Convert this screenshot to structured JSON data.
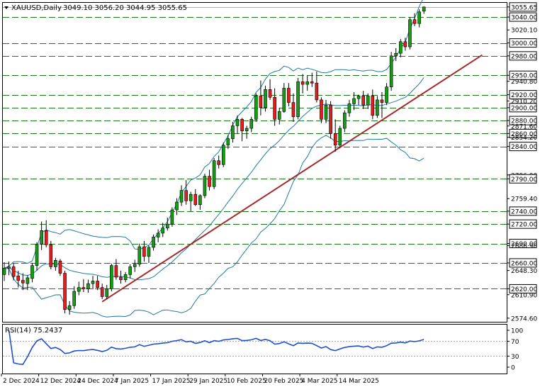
{
  "header": {
    "symbol_label": "XAUUSD,Daily",
    "ohlc": "3049.10 3056.20 3044.95 3055.65"
  },
  "rsi": {
    "label": "RSI(14) 75.2437",
    "value": 75.2437,
    "levels": [
      "100",
      "70",
      "30",
      "0"
    ]
  },
  "colors": {
    "bull": "#10a010",
    "bear": "#e02020",
    "grid": "#1a7a1a",
    "band": "#1f7aa0",
    "trend": "#a52a2a",
    "rsi": "#1e4fd0"
  },
  "chart_data": {
    "type": "candlestick",
    "price_axis_labels": [
      "3055.65",
      "3040.00",
      "3020.10",
      "3000.00",
      "2980.00",
      "2950.00",
      "2940.80",
      "2920.00",
      "2910.20",
      "2900.00",
      "2880.00",
      "2871.60",
      "2860.00",
      "2854.20",
      "2840.00",
      "2796.00",
      "2790.00",
      "2759.40",
      "2740.00",
      "2720.00",
      "2690.00",
      "2686.90",
      "2660.00",
      "2648.30",
      "2620.00",
      "2610.90",
      "2574.60"
    ],
    "highlighted_levels": [
      "3055.65",
      "3040.00",
      "3000.00",
      "2980.00",
      "2950.00",
      "2920.00",
      "2900.00",
      "2880.00",
      "2860.00",
      "2840.00",
      "2790.00",
      "2740.00",
      "2720.00",
      "2690.00",
      "2660.00",
      "2620.00"
    ],
    "dashed_levels": [
      3040,
      3000,
      2980,
      2950,
      2920,
      2900,
      2880,
      2860,
      2840,
      2790,
      2740,
      2720,
      2690,
      2660,
      2620
    ],
    "x_labels": [
      "2 Dec 2024",
      "12 Dec 2024",
      "24 Dec 2024",
      "7 Jan 2025",
      "17 Jan 2025",
      "29 Jan 2025",
      "10 Feb 2025",
      "20 Feb 2025",
      "4 Mar 2025",
      "14 Mar 2025"
    ],
    "x_label_index": [
      0,
      8,
      16,
      24,
      32,
      40,
      48,
      56,
      64,
      72
    ],
    "y_range": [
      2569,
      3062
    ],
    "candles": [
      [
        2642,
        2661,
        2632,
        2652
      ],
      [
        2652,
        2662,
        2641,
        2654
      ],
      [
        2654,
        2659,
        2633,
        2639
      ],
      [
        2640,
        2648,
        2622,
        2633
      ],
      [
        2633,
        2644,
        2618,
        2629
      ],
      [
        2628,
        2641,
        2618,
        2637
      ],
      [
        2636,
        2660,
        2630,
        2656
      ],
      [
        2656,
        2692,
        2648,
        2689
      ],
      [
        2689,
        2724,
        2680,
        2710
      ],
      [
        2710,
        2726,
        2684,
        2688
      ],
      [
        2688,
        2694,
        2650,
        2654
      ],
      [
        2654,
        2668,
        2648,
        2664
      ],
      [
        2663,
        2666,
        2640,
        2644
      ],
      [
        2644,
        2648,
        2582,
        2588
      ],
      [
        2588,
        2601,
        2580,
        2594
      ],
      [
        2594,
        2624,
        2589,
        2616
      ],
      [
        2616,
        2631,
        2610,
        2622
      ],
      [
        2622,
        2635,
        2615,
        2620
      ],
      [
        2620,
        2634,
        2614,
        2628
      ],
      [
        2628,
        2640,
        2619,
        2632
      ],
      [
        2632,
        2640,
        2618,
        2622
      ],
      [
        2622,
        2628,
        2604,
        2608
      ],
      [
        2608,
        2626,
        2604,
        2620
      ],
      [
        2620,
        2659,
        2616,
        2656
      ],
      [
        2656,
        2666,
        2634,
        2638
      ],
      [
        2638,
        2648,
        2628,
        2634
      ],
      [
        2634,
        2646,
        2630,
        2642
      ],
      [
        2642,
        2658,
        2636,
        2654
      ],
      [
        2654,
        2665,
        2646,
        2658
      ],
      [
        2658,
        2690,
        2654,
        2685
      ],
      [
        2685,
        2694,
        2662,
        2670
      ],
      [
        2670,
        2687,
        2660,
        2684
      ],
      [
        2684,
        2704,
        2679,
        2700
      ],
      [
        2700,
        2712,
        2692,
        2706
      ],
      [
        2706,
        2722,
        2700,
        2714
      ],
      [
        2714,
        2730,
        2710,
        2720
      ],
      [
        2720,
        2746,
        2716,
        2742
      ],
      [
        2742,
        2760,
        2734,
        2754
      ],
      [
        2754,
        2780,
        2748,
        2772
      ],
      [
        2772,
        2788,
        2750,
        2756
      ],
      [
        2756,
        2770,
        2740,
        2766
      ],
      [
        2766,
        2774,
        2748,
        2750
      ],
      [
        2750,
        2766,
        2742,
        2764
      ],
      [
        2764,
        2798,
        2760,
        2794
      ],
      [
        2794,
        2804,
        2772,
        2778
      ],
      [
        2778,
        2822,
        2774,
        2818
      ],
      [
        2818,
        2826,
        2806,
        2812
      ],
      [
        2812,
        2846,
        2808,
        2842
      ],
      [
        2842,
        2858,
        2836,
        2852
      ],
      [
        2852,
        2878,
        2846,
        2872
      ],
      [
        2872,
        2888,
        2860,
        2882
      ],
      [
        2882,
        2884,
        2848,
        2864
      ],
      [
        2864,
        2872,
        2852,
        2868
      ],
      [
        2868,
        2886,
        2862,
        2882
      ],
      [
        2882,
        2922,
        2878,
        2918
      ],
      [
        2918,
        2942,
        2888,
        2900
      ],
      [
        2900,
        2934,
        2894,
        2928
      ],
      [
        2928,
        2944,
        2912,
        2916
      ],
      [
        2916,
        2930,
        2872,
        2882
      ],
      [
        2882,
        2900,
        2874,
        2894
      ],
      [
        2894,
        2938,
        2892,
        2930
      ],
      [
        2930,
        2938,
        2902,
        2908
      ],
      [
        2908,
        2922,
        2878,
        2886
      ],
      [
        2886,
        2946,
        2882,
        2940
      ],
      [
        2940,
        2952,
        2922,
        2936
      ],
      [
        2936,
        2950,
        2926,
        2940
      ],
      [
        2940,
        2954,
        2932,
        2938
      ],
      [
        2938,
        2956,
        2908,
        2912
      ],
      [
        2912,
        2916,
        2876,
        2882
      ],
      [
        2882,
        2912,
        2876,
        2904
      ],
      [
        2904,
        2910,
        2852,
        2860
      ],
      [
        2860,
        2882,
        2832,
        2842
      ],
      [
        2842,
        2872,
        2838,
        2868
      ],
      [
        2868,
        2896,
        2862,
        2892
      ],
      [
        2892,
        2912,
        2886,
        2906
      ],
      [
        2906,
        2924,
        2896,
        2914
      ],
      [
        2914,
        2920,
        2904,
        2918
      ],
      [
        2918,
        2926,
        2898,
        2904
      ],
      [
        2904,
        2922,
        2898,
        2918
      ],
      [
        2918,
        2928,
        2882,
        2888
      ],
      [
        2888,
        2918,
        2884,
        2912
      ],
      [
        2912,
        2924,
        2884,
        2908
      ],
      [
        2908,
        2938,
        2904,
        2932
      ],
      [
        2932,
        2986,
        2926,
        2980
      ],
      [
        2980,
        2992,
        2972,
        2984
      ],
      [
        2984,
        3006,
        2978,
        3002
      ],
      [
        3002,
        3008,
        2988,
        2994
      ],
      [
        2994,
        3040,
        2990,
        3036
      ],
      [
        3036,
        3046,
        3026,
        3030
      ],
      [
        3030,
        3052,
        3024,
        3048
      ],
      [
        3049.1,
        3056.2,
        3044.95,
        3055.65
      ]
    ]
  }
}
